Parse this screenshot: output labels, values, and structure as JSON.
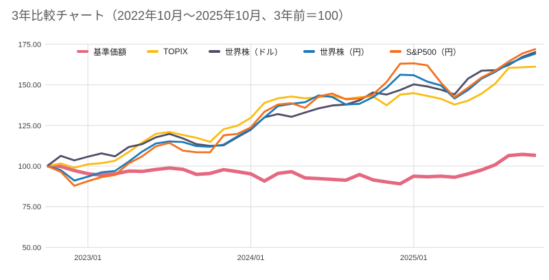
{
  "title": "3年比較チャート（2022年10月～2025年10月、3年前＝100）",
  "chart_data": {
    "type": "line",
    "title": "3年比較チャート（2022年10月～2025年10月、3年前＝100）",
    "xlabel": "",
    "ylabel": "",
    "ylim": [
      50,
      175
    ],
    "grid": true,
    "legend_position": "top",
    "baseline_note": "3年前＝100",
    "y_ticks": [
      175,
      150,
      125,
      100,
      75,
      50
    ],
    "y_tick_labels": [
      "175.00",
      "150.00",
      "125.00",
      "100.00",
      "75.00",
      "50.00"
    ],
    "x_ticks": [
      "2023/01",
      "2024/01",
      "2025/01"
    ],
    "months": [
      "2022/10",
      "2022/11",
      "2022/12",
      "2023/01",
      "2023/02",
      "2023/03",
      "2023/04",
      "2023/05",
      "2023/06",
      "2023/07",
      "2023/08",
      "2023/09",
      "2023/10",
      "2023/11",
      "2023/12",
      "2024/01",
      "2024/02",
      "2024/03",
      "2024/04",
      "2024/05",
      "2024/06",
      "2024/07",
      "2024/08",
      "2024/09",
      "2024/10",
      "2024/11",
      "2024/12",
      "2025/01",
      "2025/02",
      "2025/03",
      "2025/04",
      "2025/05",
      "2025/06",
      "2025/07",
      "2025/08",
      "2025/09",
      "2025/10"
    ],
    "series": [
      {
        "name": "基準価額",
        "color": "#e5687f",
        "line_width": 5,
        "values": [
          100,
          99.8,
          97.2,
          95.3,
          94.4,
          95.2,
          96.9,
          96.7,
          97.9,
          98.8,
          98,
          94.9,
          95.5,
          97.8,
          96.6,
          95.2,
          90.8,
          95.5,
          96.6,
          92.7,
          92.3,
          91.8,
          91.3,
          94.8,
          91.5,
          90.2,
          89.1,
          93.8,
          93.4,
          93.8,
          93.1,
          95.2,
          97.6,
          100.8,
          106.5,
          107.2,
          106.6
        ]
      },
      {
        "name": "TOPIX",
        "color": "#fbbc12",
        "line_width": 2.8,
        "values": [
          100,
          101.6,
          99,
          101.1,
          101.8,
          103.3,
          108.6,
          114.5,
          119.8,
          121,
          119.1,
          117.4,
          114.9,
          122.7,
          124.8,
          129.7,
          138.9,
          141.7,
          142.8,
          141.7,
          142.4,
          143.1,
          141.4,
          142.4,
          142.9,
          137.4,
          144,
          144.9,
          143.2,
          141.4,
          137.9,
          140.2,
          144.6,
          150.7,
          160.4,
          160.8,
          161.2
        ]
      },
      {
        "name": "世界株（ドル）",
        "color": "#504e66",
        "line_width": 2.8,
        "values": [
          100,
          106.3,
          103.5,
          105.8,
          107.8,
          106,
          111.7,
          113.5,
          117.7,
          119.8,
          117,
          113.5,
          112.4,
          112.8,
          117.7,
          122.4,
          130,
          132,
          130.3,
          133,
          135.5,
          137.3,
          137.9,
          140.4,
          145.3,
          144,
          146.8,
          150.3,
          149,
          147,
          144.1,
          153.8,
          158.7,
          159,
          162.2,
          167.2,
          170.3
        ]
      },
      {
        "name": "世界株（円）",
        "color": "#1d7bb8",
        "line_width": 2.8,
        "values": [
          100,
          97.5,
          91.1,
          93.5,
          96.1,
          97,
          102.7,
          108.9,
          113.9,
          115.2,
          114.8,
          112.3,
          111.9,
          113.2,
          118.2,
          122.8,
          129.9,
          136.9,
          138.3,
          139.3,
          143.5,
          142.5,
          137.9,
          138.3,
          142.4,
          148.2,
          156.2,
          155.9,
          152,
          149.6,
          141.6,
          146.8,
          153.8,
          158,
          163,
          166.5,
          169.3
        ]
      },
      {
        "name": "S&P500（円）",
        "color": "#f4711f",
        "line_width": 2.8,
        "values": [
          100,
          96.5,
          87.9,
          90.7,
          93.2,
          94.5,
          101.6,
          106,
          112.1,
          114.3,
          109.5,
          108.5,
          108.5,
          118.9,
          119.8,
          123.8,
          133.4,
          137.9,
          138.7,
          135.8,
          142.9,
          144.6,
          141.1,
          141.5,
          144,
          151.7,
          163,
          163.2,
          162,
          151.3,
          142.3,
          148.2,
          154.5,
          158.7,
          164.4,
          169.3,
          172.1
        ]
      }
    ]
  }
}
